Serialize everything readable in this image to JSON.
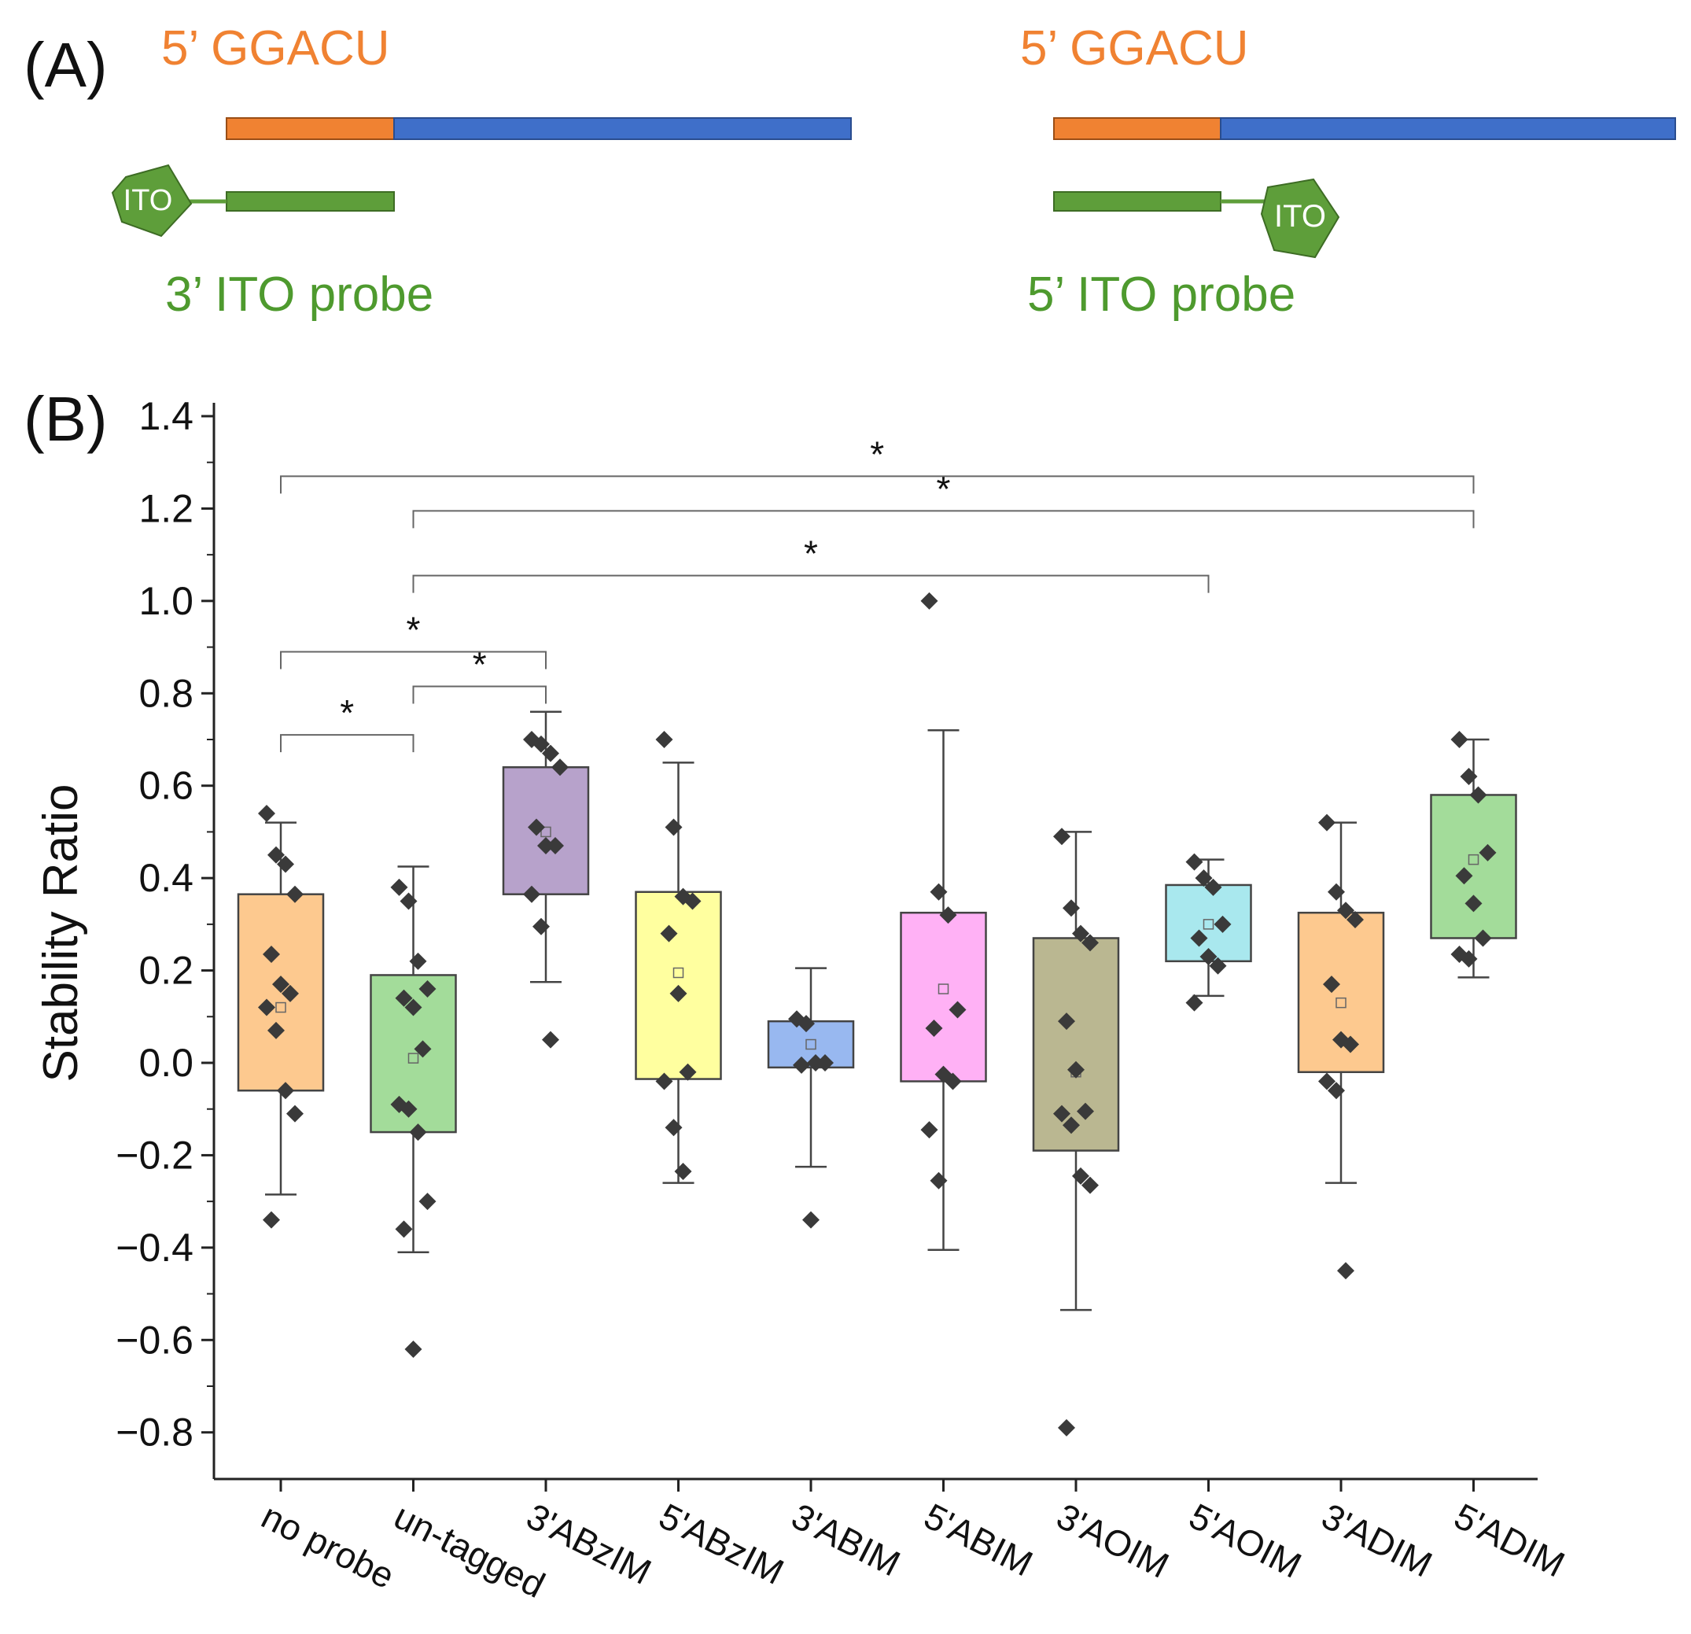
{
  "panel_a": {
    "label": "(A)",
    "left": {
      "top_label": "5’ GGACU",
      "tag_label": "ITO",
      "probe_label": "3’ ITO probe"
    },
    "right": {
      "top_label": "5’ GGACU",
      "tag_label": "ITO",
      "probe_label": "5’ ITO probe"
    },
    "colors": {
      "orange": "#F08232",
      "blue": "#3F6FC9",
      "green": "#5E9E3A",
      "green_text": "#4E9A2E",
      "orange_text": "#F08232"
    }
  },
  "panel_b": {
    "label": "(B)"
  },
  "chart_data": {
    "type": "box",
    "ylabel": "Stability Ratio",
    "xlabel": "",
    "ylim": [
      -0.9,
      1.4
    ],
    "yticks": [
      -0.8,
      -0.6,
      -0.4,
      -0.2,
      0.0,
      0.2,
      0.4,
      0.6,
      0.8,
      1.0,
      1.2,
      1.4
    ],
    "ytick_labels": [
      "−0.8",
      "−0.6",
      "−0.4",
      "−0.2",
      "0.0",
      "0.2",
      "0.4",
      "0.6",
      "0.8",
      "1.0",
      "1.2",
      "1.4"
    ],
    "categories": [
      "no probe",
      "un-tagged",
      "3'ABzIM",
      "5'ABzIM",
      "3'ABIM",
      "5'ABIM",
      "3'AOIM",
      "5'AOIM",
      "3'ADIM",
      "5'ADIM"
    ],
    "boxes": [
      {
        "name": "no probe",
        "color": "#FDC98F",
        "q1": -0.06,
        "q3": 0.365,
        "median": 0.13,
        "mean": 0.12,
        "whisker_low": -0.285,
        "whisker_high": 0.52,
        "points": [
          0.54,
          0.45,
          0.43,
          0.365,
          0.235,
          0.17,
          0.15,
          0.12,
          0.07,
          -0.06,
          -0.11,
          -0.34
        ]
      },
      {
        "name": "un-tagged",
        "color": "#A3DC9A",
        "q1": -0.15,
        "q3": 0.19,
        "median": 0.1,
        "mean": 0.01,
        "whisker_low": -0.41,
        "whisker_high": 0.425,
        "points": [
          0.38,
          0.35,
          0.22,
          0.16,
          0.14,
          0.12,
          0.03,
          -0.09,
          -0.1,
          -0.15,
          -0.3,
          -0.36,
          -0.62
        ]
      },
      {
        "name": "3'ABzIM",
        "color": "#B7A2CB",
        "q1": 0.365,
        "q3": 0.64,
        "median": 0.47,
        "mean": 0.5,
        "whisker_low": 0.175,
        "whisker_high": 0.76,
        "points": [
          0.7,
          0.69,
          0.67,
          0.64,
          0.51,
          0.47,
          0.47,
          0.365,
          0.295,
          0.05
        ]
      },
      {
        "name": "5'ABzIM",
        "color": "#FFFF9F",
        "q1": -0.035,
        "q3": 0.37,
        "median": 0.15,
        "mean": 0.195,
        "whisker_low": -0.26,
        "whisker_high": 0.65,
        "points": [
          0.7,
          0.51,
          0.36,
          0.35,
          0.28,
          0.15,
          -0.02,
          -0.04,
          -0.14,
          -0.235
        ]
      },
      {
        "name": "3'ABIM",
        "color": "#98B8F0",
        "q1": -0.01,
        "q3": 0.09,
        "median": 0.0,
        "mean": 0.04,
        "whisker_low": -0.225,
        "whisker_high": 0.205,
        "points": [
          0.095,
          0.085,
          0.0,
          0.0,
          -0.005,
          -0.34
        ]
      },
      {
        "name": "5'ABIM",
        "color": "#FFB1F5",
        "q1": -0.04,
        "q3": 0.325,
        "median": 0.1,
        "mean": 0.16,
        "whisker_low": -0.405,
        "whisker_high": 0.72,
        "points": [
          1.0,
          0.37,
          0.32,
          0.115,
          0.075,
          -0.025,
          -0.04,
          -0.145,
          -0.255
        ]
      },
      {
        "name": "3'AOIM",
        "color": "#BAB791",
        "q1": -0.19,
        "q3": 0.27,
        "median": 0.0,
        "mean": -0.02,
        "whisker_low": -0.535,
        "whisker_high": 0.5,
        "points": [
          0.49,
          0.335,
          0.28,
          0.26,
          0.09,
          -0.015,
          -0.105,
          -0.11,
          -0.135,
          -0.245,
          -0.265,
          -0.79
        ]
      },
      {
        "name": "5'AOIM",
        "color": "#A9E8EE",
        "q1": 0.22,
        "q3": 0.385,
        "median": 0.3,
        "mean": 0.3,
        "whisker_low": 0.145,
        "whisker_high": 0.44,
        "points": [
          0.435,
          0.4,
          0.38,
          0.3,
          0.27,
          0.23,
          0.21,
          0.13
        ]
      },
      {
        "name": "3'ADIM",
        "color": "#FDC98F",
        "q1": -0.02,
        "q3": 0.325,
        "median": 0.05,
        "mean": 0.13,
        "whisker_low": -0.26,
        "whisker_high": 0.52,
        "points": [
          0.52,
          0.37,
          0.33,
          0.31,
          0.17,
          0.05,
          0.04,
          -0.04,
          -0.06,
          -0.45
        ]
      },
      {
        "name": "5'ADIM",
        "color": "#A3DC9A",
        "q1": 0.27,
        "q3": 0.58,
        "median": 0.44,
        "mean": 0.44,
        "whisker_low": 0.185,
        "whisker_high": 0.7,
        "points": [
          0.7,
          0.62,
          0.58,
          0.455,
          0.405,
          0.345,
          0.27,
          0.235,
          0.225
        ]
      }
    ],
    "significance": [
      {
        "from": "no probe",
        "to": "un-tagged",
        "y": 0.71,
        "label": "*"
      },
      {
        "from": "un-tagged",
        "to": "3'ABzIM",
        "y": 0.815,
        "label": "*"
      },
      {
        "from": "no probe",
        "to": "3'ABzIM",
        "y": 0.89,
        "label": "*"
      },
      {
        "from": "un-tagged",
        "to": "5'AOIM",
        "y": 1.055,
        "label": "*"
      },
      {
        "from": "un-tagged",
        "to": "5'ADIM",
        "y": 1.195,
        "label": "*"
      },
      {
        "from": "no probe",
        "to": "5'ADIM",
        "y": 1.27,
        "label": "*"
      }
    ]
  }
}
